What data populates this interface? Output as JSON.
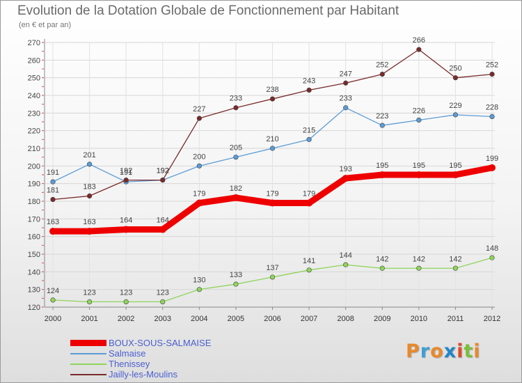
{
  "title": "Evolution de la Dotation Globale de Fonctionnement par Habitant",
  "subtitle": "(en € et par an)",
  "logo": {
    "text": "Proxiti",
    "colors": [
      "#e8892b",
      "#3aa0d8",
      "#e8892b",
      "#1f86c8",
      "#e04a2a",
      "#7bbf3a",
      "#e8892b"
    ]
  },
  "chart_data": {
    "type": "line",
    "title": "Evolution de la Dotation Globale de Fonctionnement par Habitant",
    "subtitle": "(en € et par an)",
    "x": [
      "2000",
      "2001",
      "2002",
      "2003",
      "2004",
      "2005",
      "2006",
      "2007",
      "2008",
      "2009",
      "2010",
      "2011",
      "2012"
    ],
    "ylim": [
      120,
      270
    ],
    "yticks": [
      120,
      130,
      140,
      150,
      160,
      170,
      180,
      190,
      200,
      210,
      220,
      230,
      240,
      250,
      260,
      270
    ],
    "grid": true,
    "legend": "bottom-left",
    "series": [
      {
        "name": "BOUX-SOUS-SALMAISE",
        "color": "#ee0000",
        "values": [
          163,
          163,
          164,
          164,
          179,
          182,
          179,
          179,
          193,
          195,
          195,
          195,
          199
        ]
      },
      {
        "name": "Salmaise",
        "color": "#5b9bd5",
        "values": [
          191,
          201,
          191,
          192,
          200,
          205,
          210,
          215,
          233,
          223,
          226,
          229,
          228
        ]
      },
      {
        "name": "Thenissey",
        "color": "#8fd45a",
        "values": [
          124,
          123,
          123,
          123,
          130,
          133,
          137,
          141,
          144,
          142,
          142,
          142,
          148
        ]
      },
      {
        "name": "Jailly-les-Moulins",
        "color": "#7a2a2a",
        "values": [
          181,
          183,
          192,
          192,
          227,
          233,
          238,
          243,
          247,
          252,
          266,
          250,
          252
        ]
      }
    ]
  }
}
